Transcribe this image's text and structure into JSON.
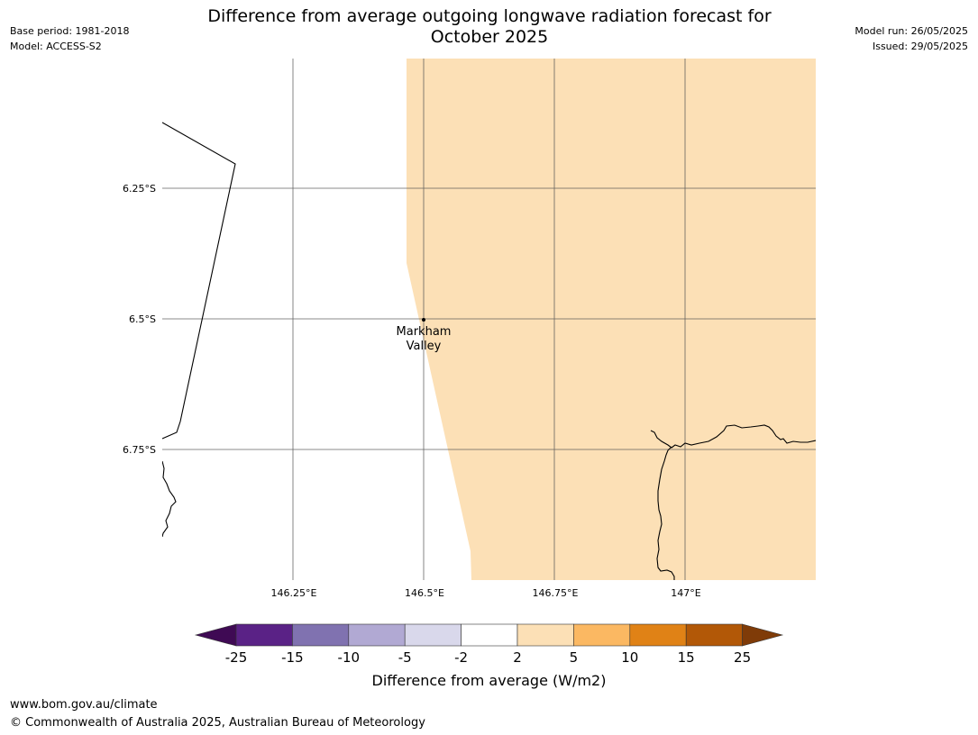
{
  "header": {
    "title_line1": "Difference from average outgoing longwave radiation forecast for",
    "title_line2": "October 2025",
    "base_period": "Base period: 1981-2018",
    "model": "Model: ACCESS-S2",
    "model_run": "Model run: 26/05/2025",
    "issued": "Issued: 29/05/2025"
  },
  "map": {
    "lon_labels": [
      "146.25°E",
      "146.5°E",
      "146.75°E",
      "147°E"
    ],
    "lat_labels": [
      "6.25°S",
      "6.5°S",
      "6.75°S"
    ],
    "place": {
      "name_line1": "Markham",
      "name_line2": "Valley"
    },
    "shaded_category": "2 to 5",
    "shaded_color": "#fce0b6"
  },
  "colorbar": {
    "tick_labels": [
      "-25",
      "-15",
      "-10",
      "-5",
      "-2",
      "2",
      "5",
      "10",
      "15",
      "25"
    ],
    "colors": [
      "#3f0a54",
      "#5a2286",
      "#8072b0",
      "#b1a9d3",
      "#d9d8eb",
      "#ffffff",
      "#fce0b6",
      "#fbb862",
      "#e08216",
      "#b25807",
      "#7f3b08"
    ],
    "label": "Difference from average (W/m2)"
  },
  "footer": {
    "url": "www.bom.gov.au/climate",
    "copyright": "© Commonwealth of Australia 2025, Australian Bureau of Meteorology"
  }
}
